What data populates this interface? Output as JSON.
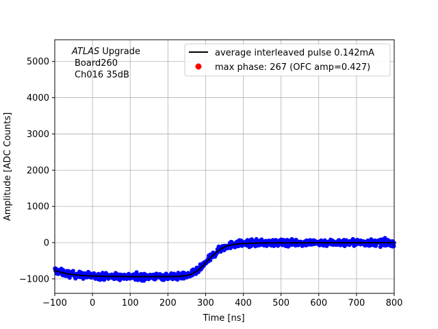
{
  "chart_data": {
    "type": "scatter",
    "title": "",
    "xlabel": "Time [ns]",
    "ylabel": "Amplitude [ADC Counts]",
    "xlim": [
      -100,
      800
    ],
    "ylim": [
      -1400,
      5600
    ],
    "grid": true,
    "x_ticks": [
      -100,
      0,
      100,
      200,
      300,
      400,
      500,
      600,
      700,
      800
    ],
    "y_ticks": [
      -1000,
      0,
      1000,
      2000,
      3000,
      4000,
      5000
    ],
    "annotation": {
      "italic": "ATLAS",
      "upright": " Upgrade",
      "line2": "Board260",
      "line3": "Ch016 35dB"
    },
    "legend": {
      "placement": "top-right",
      "line_label": "average interleaved pulse 0.142mA",
      "marker_label": "max phase: 267 (OFC amp=0.427)"
    },
    "series": [
      {
        "name": "average interleaved pulse 0.142mA",
        "kind": "line",
        "color": "#000000",
        "points": [
          [
            -100,
            -760
          ],
          [
            -90,
            -800
          ],
          [
            -75,
            -840
          ],
          [
            -60,
            -870
          ],
          [
            -40,
            -895
          ],
          [
            -20,
            -910
          ],
          [
            0,
            -920
          ],
          [
            40,
            -930
          ],
          [
            80,
            -935
          ],
          [
            120,
            -938
          ],
          [
            160,
            -938
          ],
          [
            200,
            -936
          ],
          [
            230,
            -930
          ],
          [
            245,
            -915
          ],
          [
            260,
            -880
          ],
          [
            270,
            -830
          ],
          [
            280,
            -760
          ],
          [
            290,
            -670
          ],
          [
            300,
            -560
          ],
          [
            310,
            -450
          ],
          [
            320,
            -340
          ],
          [
            330,
            -250
          ],
          [
            340,
            -180
          ],
          [
            350,
            -120
          ],
          [
            360,
            -80
          ],
          [
            375,
            -50
          ],
          [
            390,
            -30
          ],
          [
            410,
            -20
          ],
          [
            440,
            -12
          ],
          [
            480,
            -6
          ],
          [
            550,
            -3
          ],
          [
            650,
            -2
          ],
          [
            800,
            0
          ]
        ]
      },
      {
        "name": "samples",
        "kind": "scatter",
        "color": "#0000ff",
        "noise": 45,
        "count": 1200
      },
      {
        "name": "max phase: 267 (OFC amp=0.427)",
        "kind": "marker",
        "color": "#ff0000",
        "points": []
      }
    ]
  }
}
